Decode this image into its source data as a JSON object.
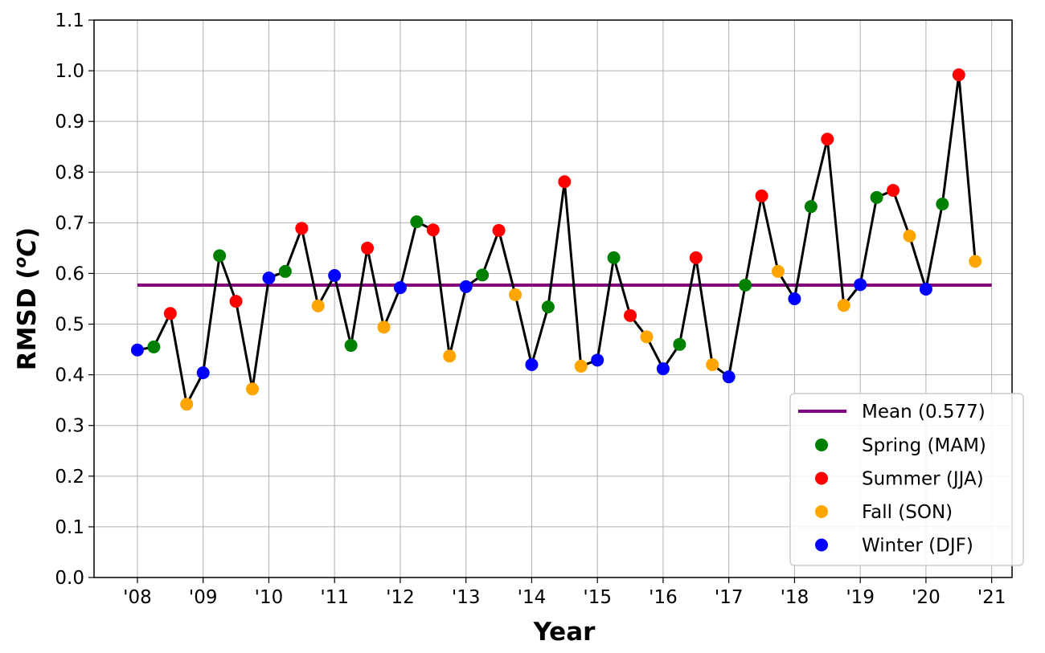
{
  "chart_data": {
    "type": "line",
    "title": "",
    "xlabel": "Year",
    "ylabel": "RMSD (°C)",
    "ylabel_parts": {
      "main": "RMSD (",
      "sup": "o",
      "unit": "C",
      "close": ")"
    },
    "xlim": [
      2007.34,
      2021.31
    ],
    "ylim": [
      0.0,
      1.1
    ],
    "grid": true,
    "x_ticks": [
      2008,
      2009,
      2010,
      2011,
      2012,
      2013,
      2014,
      2015,
      2016,
      2017,
      2018,
      2019,
      2020,
      2021
    ],
    "x_tick_labels": [
      "'08",
      "'09",
      "'10",
      "'11",
      "'12",
      "'13",
      "'14",
      "'15",
      "'16",
      "'17",
      "'18",
      "'19",
      "'20",
      "'21"
    ],
    "y_ticks": [
      0.0,
      0.1,
      0.2,
      0.3,
      0.4,
      0.5,
      0.6,
      0.7,
      0.8,
      0.9,
      1.0,
      1.1
    ],
    "y_tick_labels": [
      "0.0",
      "0.1",
      "0.2",
      "0.3",
      "0.4",
      "0.5",
      "0.6",
      "0.7",
      "0.8",
      "0.9",
      "1.0",
      "1.1"
    ],
    "line_color": "#000000",
    "mean": {
      "label": "Mean (0.577)",
      "value": 0.577,
      "x_range": [
        2008,
        2021
      ],
      "color": "#800080"
    },
    "seasons": [
      {
        "name": "Spring (MAM)",
        "color": "#008000",
        "offset": 0.25
      },
      {
        "name": "Summer (JJA)",
        "color": "#ff0000",
        "offset": 0.5
      },
      {
        "name": "Fall (SON)",
        "color": "#ffa500",
        "offset": 0.75
      },
      {
        "name": "Winter (DJF)",
        "color": "#0000ff",
        "offset": 0.0
      }
    ],
    "legend_position": "lower-right",
    "x": [
      2008.0,
      2008.25,
      2008.5,
      2008.75,
      2009.0,
      2009.25,
      2009.5,
      2009.75,
      2010.0,
      2010.25,
      2010.5,
      2010.75,
      2011.0,
      2011.25,
      2011.5,
      2011.75,
      2012.0,
      2012.25,
      2012.5,
      2012.75,
      2013.0,
      2013.25,
      2013.5,
      2013.75,
      2014.0,
      2014.25,
      2014.5,
      2014.75,
      2015.0,
      2015.25,
      2015.5,
      2015.75,
      2016.0,
      2016.25,
      2016.5,
      2016.75,
      2017.0,
      2017.25,
      2017.5,
      2017.75,
      2018.0,
      2018.25,
      2018.5,
      2018.75,
      2019.0,
      2019.25,
      2019.5,
      2019.75,
      2020.0,
      2020.25,
      2020.5,
      2020.75
    ],
    "y": [
      0.449,
      0.455,
      0.521,
      0.342,
      0.404,
      0.635,
      0.545,
      0.372,
      0.591,
      0.604,
      0.689,
      0.536,
      0.596,
      0.458,
      0.65,
      0.494,
      0.572,
      0.702,
      0.686,
      0.437,
      0.574,
      0.597,
      0.685,
      0.558,
      0.42,
      0.534,
      0.781,
      0.417,
      0.429,
      0.631,
      0.517,
      0.475,
      0.412,
      0.46,
      0.631,
      0.42,
      0.396,
      0.577,
      0.753,
      0.604,
      0.55,
      0.732,
      0.865,
      0.537,
      0.578,
      0.75,
      0.764,
      0.674,
      0.569,
      0.737,
      0.992,
      0.624
    ]
  }
}
